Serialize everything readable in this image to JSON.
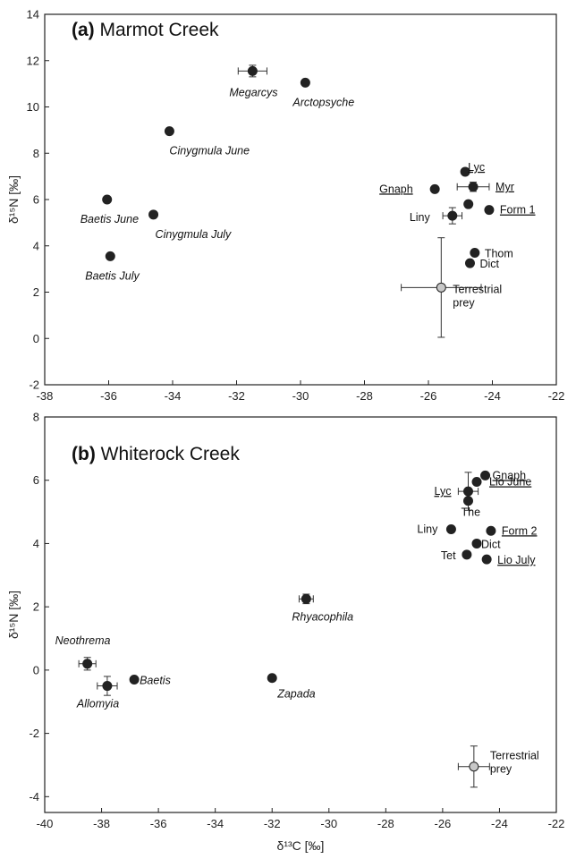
{
  "chart_data": [
    {
      "type": "scatter",
      "panel_letter": "(a)",
      "title": "Marmot Creek",
      "xlabel": "",
      "ylabel": "δ¹⁵N [‰]",
      "xlim": [
        -38,
        -22
      ],
      "ylim": [
        -2,
        14
      ],
      "xticks": [
        -38,
        -36,
        -34,
        -32,
        -30,
        -28,
        -26,
        -24,
        -22
      ],
      "yticks": [
        -2,
        0,
        2,
        4,
        6,
        8,
        10,
        12,
        14
      ],
      "points": [
        {
          "label": "Megarcys",
          "x": -31.5,
          "y": 11.55,
          "xerr": 0.45,
          "yerr": 0.25,
          "italic": true,
          "underline": false,
          "fill": "#222222"
        },
        {
          "label": "Arctopsyche",
          "x": -29.85,
          "y": 11.05,
          "italic": true,
          "underline": false,
          "fill": "#222222"
        },
        {
          "label": "Cinygmula June",
          "x": -34.1,
          "y": 8.95,
          "italic": true,
          "underline": false,
          "fill": "#222222"
        },
        {
          "label": "Baetis June",
          "x": -36.05,
          "y": 6.0,
          "italic": true,
          "underline": false,
          "fill": "#222222"
        },
        {
          "label": "Cinygmula July",
          "x": -34.6,
          "y": 5.35,
          "italic": true,
          "underline": false,
          "fill": "#222222"
        },
        {
          "label": "Baetis July",
          "x": -35.95,
          "y": 3.55,
          "italic": true,
          "underline": false,
          "fill": "#222222"
        },
        {
          "label": "Lyc",
          "x": -24.85,
          "y": 7.2,
          "italic": false,
          "underline": true,
          "fill": "#222222"
        },
        {
          "label": "Gnaph",
          "x": -25.8,
          "y": 6.45,
          "italic": false,
          "underline": true,
          "fill": "#222222"
        },
        {
          "label": "Myr",
          "x": -24.6,
          "y": 6.55,
          "xerr": 0.5,
          "yerr": 0.2,
          "italic": false,
          "underline": true,
          "fill": "#222222"
        },
        {
          "label": "",
          "x": -24.75,
          "y": 5.8,
          "italic": false,
          "underline": false,
          "fill": "#222222"
        },
        {
          "label": "Form 1",
          "x": -24.1,
          "y": 5.55,
          "italic": false,
          "underline": true,
          "fill": "#222222"
        },
        {
          "label": "Liny",
          "x": -25.25,
          "y": 5.3,
          "xerr": 0.3,
          "yerr": 0.35,
          "italic": false,
          "underline": false,
          "fill": "#222222"
        },
        {
          "label": "Thom",
          "x": -24.55,
          "y": 3.7,
          "italic": false,
          "underline": false,
          "fill": "#222222"
        },
        {
          "label": "Dict",
          "x": -24.7,
          "y": 3.25,
          "italic": false,
          "underline": false,
          "fill": "#222222"
        },
        {
          "label": "Terrestrial prey",
          "x": -25.6,
          "y": 2.2,
          "xerr": 1.25,
          "yerr": 2.15,
          "italic": false,
          "underline": false,
          "fill": "#c8c8c8"
        }
      ]
    },
    {
      "type": "scatter",
      "panel_letter": "(b)",
      "title": "Whiterock Creek",
      "xlabel": "δ¹³C [‰]",
      "ylabel": "δ¹⁵N [‰]",
      "xlim": [
        -40,
        -22
      ],
      "ylim": [
        -4.5,
        8
      ],
      "xticks": [
        -40,
        -38,
        -36,
        -34,
        -32,
        -30,
        -28,
        -26,
        -24,
        -22
      ],
      "yticks": [
        -4,
        -2,
        0,
        2,
        4,
        6,
        8
      ],
      "points": [
        {
          "label": "Gnaph",
          "x": -24.5,
          "y": 6.15,
          "italic": false,
          "underline": true,
          "fill": "#222222"
        },
        {
          "label": "Lio June",
          "x": -24.8,
          "y": 5.95,
          "italic": false,
          "underline": true,
          "fill": "#222222"
        },
        {
          "label": "Lyc",
          "x": -25.1,
          "y": 5.65,
          "xerr": 0.35,
          "yerr": 0.6,
          "italic": false,
          "underline": true,
          "fill": "#222222"
        },
        {
          "label": "The",
          "x": -25.1,
          "y": 5.35,
          "italic": false,
          "underline": false,
          "fill": "#222222"
        },
        {
          "label": "Liny",
          "x": -25.7,
          "y": 4.45,
          "italic": false,
          "underline": false,
          "fill": "#222222"
        },
        {
          "label": "Form 2",
          "x": -24.3,
          "y": 4.4,
          "italic": false,
          "underline": true,
          "fill": "#222222"
        },
        {
          "label": "Dict",
          "x": -24.8,
          "y": 4.0,
          "italic": false,
          "underline": false,
          "fill": "#222222"
        },
        {
          "label": "Tet",
          "x": -25.15,
          "y": 3.65,
          "italic": false,
          "underline": false,
          "fill": "#222222"
        },
        {
          "label": "Lio July",
          "x": -24.45,
          "y": 3.5,
          "italic": false,
          "underline": true,
          "fill": "#222222"
        },
        {
          "label": "Rhyacophila",
          "x": -30.8,
          "y": 2.25,
          "xerr": 0.25,
          "yerr": 0.15,
          "italic": true,
          "underline": false,
          "fill": "#222222"
        },
        {
          "label": "Neothrema",
          "x": -38.5,
          "y": 0.2,
          "xerr": 0.3,
          "yerr": 0.2,
          "italic": true,
          "underline": false,
          "fill": "#222222"
        },
        {
          "label": "Baetis",
          "x": -36.85,
          "y": -0.3,
          "italic": true,
          "underline": false,
          "fill": "#222222"
        },
        {
          "label": "Allomyia",
          "x": -37.8,
          "y": -0.5,
          "xerr": 0.35,
          "yerr": 0.3,
          "italic": true,
          "underline": false,
          "fill": "#222222"
        },
        {
          "label": "Zapada",
          "x": -32.0,
          "y": -0.25,
          "italic": true,
          "underline": false,
          "fill": "#222222"
        },
        {
          "label": "Terrestrial prey",
          "x": -24.9,
          "y": -3.05,
          "xerr": 0.55,
          "yerr": 0.65,
          "italic": false,
          "underline": false,
          "fill": "#c8c8c8"
        }
      ]
    }
  ]
}
